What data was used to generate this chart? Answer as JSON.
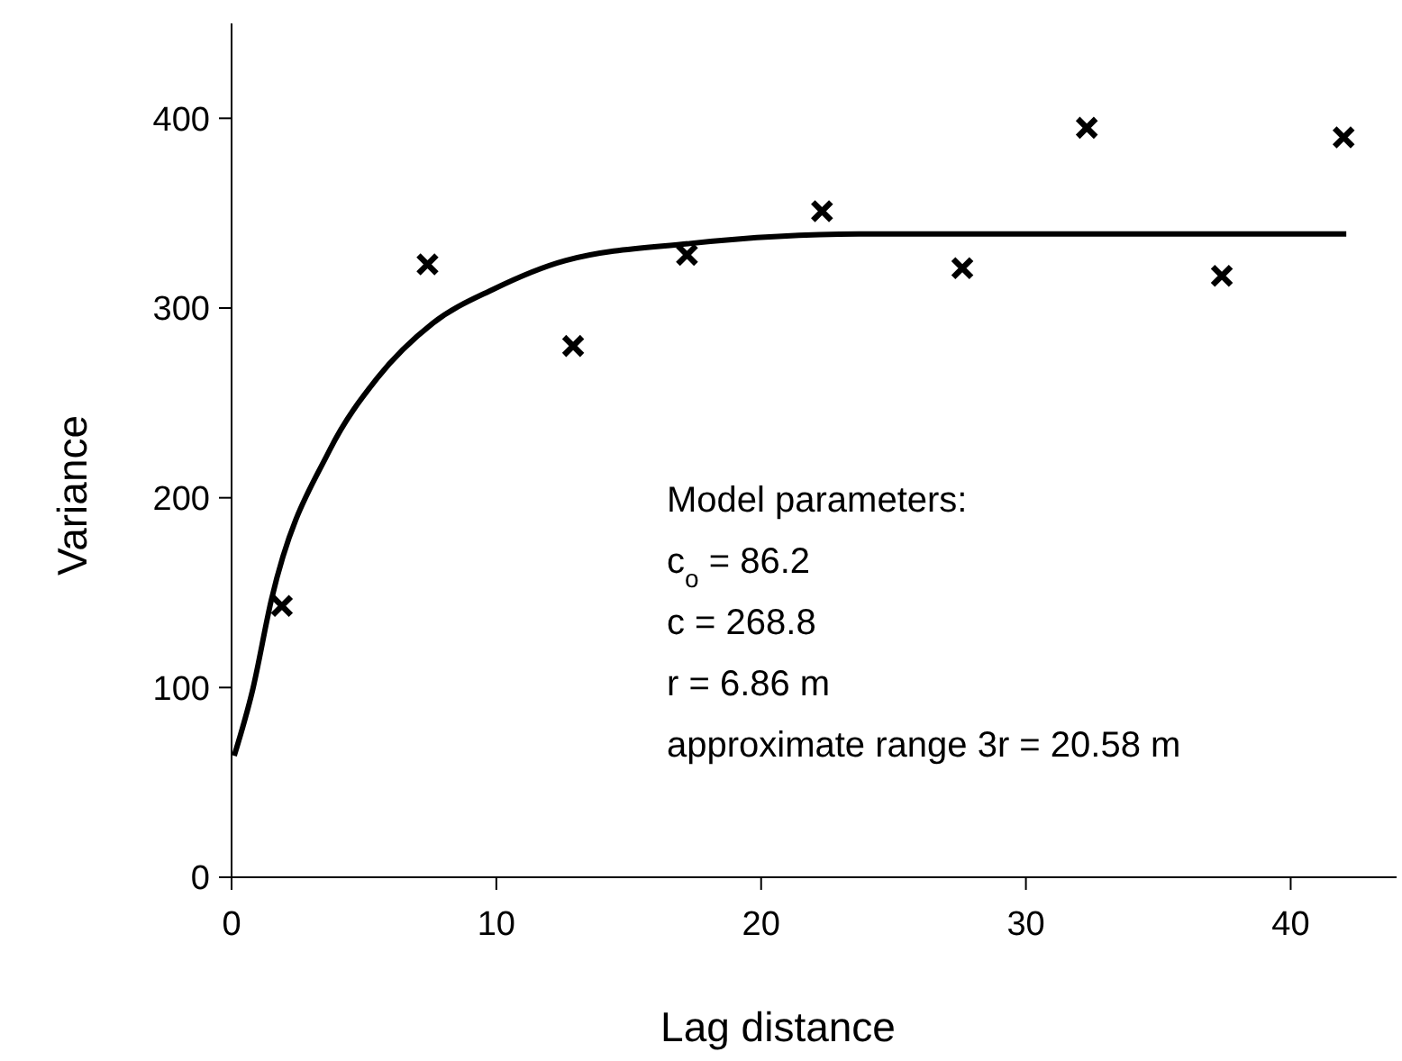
{
  "chart_data": {
    "type": "scatter",
    "xlabel": "Lag distance",
    "ylabel": "Variance",
    "xlim": [
      0,
      44
    ],
    "xticks": [
      0,
      10,
      20,
      30,
      40
    ],
    "ylim": [
      0,
      450
    ],
    "yticks": [
      0,
      100,
      200,
      300,
      400
    ],
    "grid": false,
    "series": [
      {
        "color": "#000000",
        "marker": "cross",
        "x": [
          1.9,
          7.4,
          12.9,
          17.2,
          22.3,
          27.6,
          32.3,
          37.4,
          42.0
        ],
        "values": [
          143,
          323,
          280,
          328,
          351,
          321,
          395,
          317,
          390
        ]
      },
      {
        "type": "line",
        "color": "#000000",
        "marker": "none",
        "line_style": "solid",
        "x": [
          0.1,
          0.8,
          1.5,
          3.7,
          5.5,
          7.6,
          9.9,
          12.6,
          17.3,
          23.7,
          30,
          42.1
        ],
        "values": [
          64,
          99,
          146,
          225,
          263,
          292,
          310,
          325,
          334,
          339,
          339,
          339
        ]
      }
    ],
    "annotations": [
      "Model parameters:",
      "c$_{o}$ = 86.2",
      "c = 268.8",
      "r = 6.86 m",
      "approximate range 3r = 20.58 m"
    ]
  }
}
